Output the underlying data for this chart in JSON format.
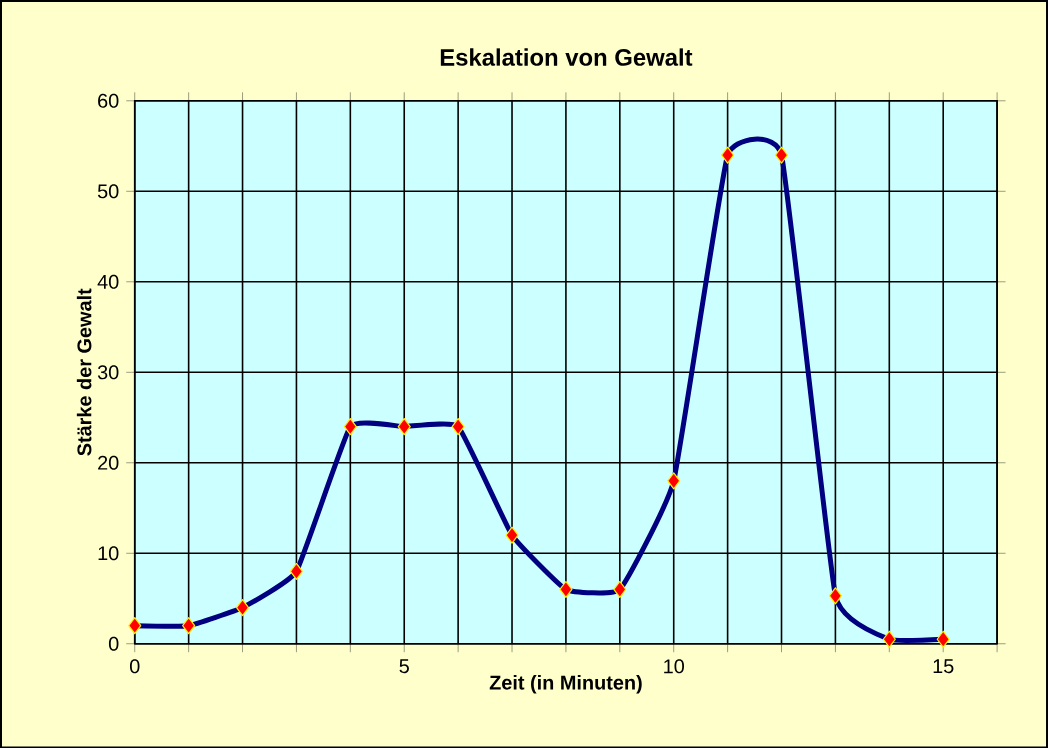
{
  "chart_data": {
    "type": "line",
    "title": "Eskalation von Gewalt",
    "xlabel": "Zeit (in Minuten)",
    "ylabel": "Stärke der Gewalt",
    "x": [
      0,
      1,
      2,
      3,
      4,
      5,
      6,
      7,
      8,
      9,
      10,
      11,
      12,
      13,
      14,
      15
    ],
    "series": [
      {
        "color": "#000080",
        "values": [
          2,
          2,
          4,
          8,
          24,
          24,
          24,
          12,
          6,
          6,
          18,
          54,
          54,
          5.3,
          0.5,
          0.5
        ]
      }
    ],
    "xlim": [
      0,
      16
    ],
    "ylim": [
      0,
      60
    ],
    "xticks": [
      0,
      {
        "value": 1,
        "label": null
      },
      {
        "value": 2,
        "label": null
      },
      {
        "value": 3,
        "label": null
      },
      {
        "value": 4,
        "label": null
      },
      5,
      {
        "value": 6,
        "label": null
      },
      {
        "value": 7,
        "label": null
      },
      {
        "value": 8,
        "label": null
      },
      {
        "value": 9,
        "label": null
      },
      10,
      {
        "value": 11,
        "label": null
      },
      {
        "value": 12,
        "label": null
      },
      {
        "value": 13,
        "label": null
      },
      {
        "value": 14,
        "label": null
      },
      15,
      {
        "value": 16,
        "label": null
      }
    ],
    "yticks": [
      0,
      10,
      20,
      30,
      40,
      50,
      60
    ],
    "grid": true,
    "marker": "diamond",
    "line_style": "solid"
  }
}
